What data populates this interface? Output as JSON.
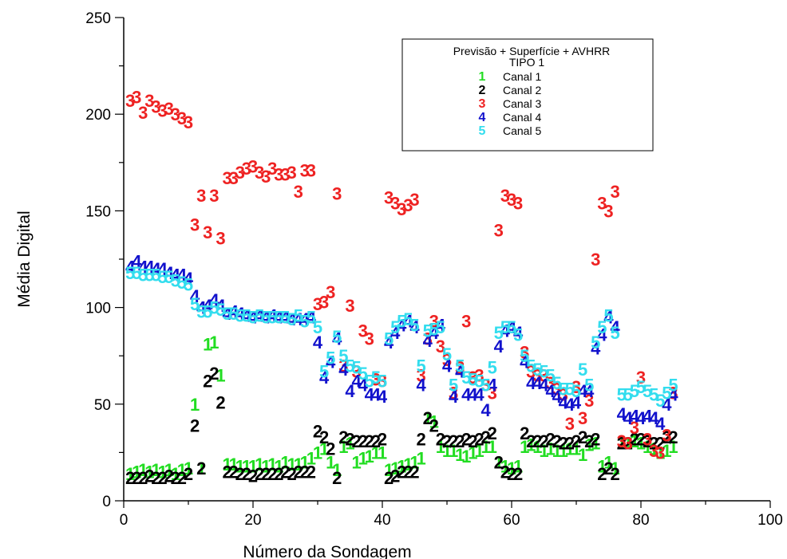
{
  "chart_data": {
    "type": "scatter",
    "xlabel": "Número da Sondagem",
    "ylabel": "Média Digital",
    "xlim": [
      0,
      100
    ],
    "ylim": [
      0,
      250
    ],
    "x_ticks": [
      "0",
      "20",
      "40",
      "60",
      "80",
      "100"
    ],
    "y_ticks": [
      "0",
      "50",
      "100",
      "150",
      "200",
      "250"
    ],
    "grid": false,
    "legend": {
      "placement": "top-right",
      "title": "Previsão + Superfície + AVHRR",
      "subtitle": "TIPO 1"
    },
    "series": [
      {
        "name": "Canal 1",
        "symbol": "1",
        "color": "#22dd22",
        "x": [
          1,
          2,
          3,
          4,
          5,
          6,
          7,
          8,
          9,
          10,
          11,
          12,
          13,
          14,
          15,
          16,
          17,
          18,
          19,
          20,
          21,
          22,
          23,
          24,
          25,
          26,
          27,
          28,
          29,
          30,
          31,
          32,
          33,
          34,
          35,
          36,
          37,
          38,
          39,
          40,
          41,
          42,
          43,
          44,
          45,
          46,
          47,
          48,
          49,
          50,
          51,
          52,
          53,
          54,
          55,
          56,
          57,
          58,
          59,
          60,
          61,
          62,
          63,
          64,
          65,
          66,
          67,
          68,
          69,
          70,
          71,
          72,
          73,
          74,
          75,
          76,
          77,
          78,
          79,
          80,
          81,
          82,
          83,
          84,
          85
        ],
        "y": [
          14,
          15,
          16,
          15,
          16,
          15,
          16,
          14,
          16,
          17,
          50,
          17,
          81,
          82,
          65,
          19,
          19,
          18,
          18,
          18,
          19,
          18,
          19,
          18,
          20,
          19,
          19,
          20,
          22,
          25,
          27,
          20,
          16,
          28,
          30,
          20,
          22,
          23,
          25,
          25,
          16,
          17,
          18,
          19,
          20,
          22,
          43,
          41,
          28,
          26,
          26,
          24,
          23,
          25,
          26,
          28,
          28,
          20,
          18,
          17,
          18,
          28,
          29,
          28,
          26,
          27,
          26,
          26,
          27,
          27,
          24,
          29,
          30,
          18,
          20,
          17,
          30,
          30,
          31,
          30,
          28,
          27,
          25,
          26,
          28
        ]
      },
      {
        "name": "Canal 2",
        "symbol": "2",
        "color": "#000000",
        "x": [
          1,
          2,
          3,
          4,
          5,
          6,
          7,
          8,
          9,
          10,
          11,
          12,
          13,
          14,
          15,
          16,
          17,
          18,
          19,
          20,
          21,
          22,
          23,
          24,
          25,
          26,
          27,
          28,
          29,
          30,
          31,
          32,
          33,
          34,
          35,
          36,
          37,
          38,
          39,
          40,
          41,
          42,
          43,
          44,
          45,
          46,
          47,
          48,
          49,
          50,
          51,
          52,
          53,
          54,
          55,
          56,
          57,
          58,
          59,
          60,
          61,
          62,
          63,
          64,
          65,
          66,
          67,
          68,
          69,
          70,
          71,
          72,
          73,
          74,
          75,
          76,
          77,
          78,
          79,
          80,
          81,
          82,
          83,
          84,
          85
        ],
        "y": [
          12,
          12,
          12,
          13,
          12,
          12,
          13,
          12,
          12,
          14,
          39,
          17,
          62,
          66,
          51,
          15,
          15,
          14,
          14,
          13,
          14,
          14,
          14,
          14,
          15,
          14,
          15,
          15,
          15,
          36,
          33,
          27,
          12,
          33,
          32,
          31,
          31,
          31,
          31,
          32,
          12,
          13,
          15,
          15,
          15,
          32,
          43,
          39,
          32,
          31,
          31,
          31,
          32,
          31,
          32,
          33,
          35,
          20,
          15,
          14,
          14,
          35,
          31,
          31,
          31,
          32,
          31,
          30,
          30,
          31,
          33,
          31,
          32,
          14,
          17,
          14,
          30,
          30,
          32,
          32,
          31,
          30,
          30,
          33,
          33
        ]
      },
      {
        "name": "Canal 3",
        "symbol": "3",
        "color": "#ee2222",
        "x": [
          1,
          2,
          3,
          4,
          5,
          6,
          7,
          8,
          9,
          10,
          11,
          12,
          13,
          14,
          15,
          16,
          17,
          18,
          19,
          20,
          21,
          22,
          23,
          24,
          25,
          26,
          27,
          28,
          29,
          30,
          31,
          32,
          33,
          34,
          35,
          36,
          37,
          38,
          39,
          40,
          41,
          42,
          43,
          44,
          45,
          46,
          47,
          48,
          49,
          50,
          51,
          52,
          53,
          54,
          55,
          56,
          57,
          58,
          59,
          60,
          61,
          62,
          63,
          64,
          65,
          66,
          67,
          68,
          69,
          70,
          71,
          72,
          73,
          74,
          75,
          76,
          77,
          78,
          79,
          80,
          81,
          82,
          83,
          84,
          85
        ],
        "y": [
          207,
          209,
          201,
          207,
          204,
          202,
          203,
          200,
          198,
          196,
          143,
          158,
          139,
          158,
          136,
          167,
          167,
          170,
          172,
          173,
          170,
          168,
          172,
          169,
          169,
          170,
          160,
          171,
          171,
          102,
          103,
          108,
          159,
          70,
          101,
          67,
          88,
          84,
          63,
          62,
          157,
          154,
          151,
          153,
          156,
          65,
          84,
          93,
          80,
          73,
          56,
          69,
          93,
          64,
          65,
          60,
          56,
          140,
          158,
          156,
          154,
          77,
          67,
          65,
          65,
          61,
          58,
          55,
          40,
          59,
          43,
          52,
          125,
          154,
          150,
          160,
          31,
          30,
          38,
          64,
          32,
          26,
          25,
          34,
          56
        ]
      },
      {
        "name": "Canal 4",
        "symbol": "4",
        "color": "#1111cc",
        "x": [
          1,
          2,
          3,
          4,
          5,
          6,
          7,
          8,
          9,
          10,
          11,
          12,
          13,
          14,
          15,
          16,
          17,
          18,
          19,
          20,
          21,
          22,
          23,
          24,
          25,
          26,
          27,
          28,
          29,
          30,
          31,
          32,
          33,
          34,
          35,
          36,
          37,
          38,
          39,
          40,
          41,
          42,
          43,
          44,
          45,
          46,
          47,
          48,
          49,
          50,
          51,
          52,
          53,
          54,
          55,
          56,
          57,
          58,
          59,
          60,
          61,
          62,
          63,
          64,
          65,
          66,
          67,
          68,
          69,
          70,
          71,
          72,
          73,
          74,
          75,
          76,
          77,
          78,
          79,
          80,
          81,
          82,
          83,
          84,
          85
        ],
        "y": [
          121,
          124,
          121,
          121,
          120,
          120,
          118,
          117,
          117,
          115,
          106,
          100,
          101,
          104,
          101,
          97,
          98,
          97,
          96,
          95,
          96,
          95,
          96,
          95,
          95,
          94,
          94,
          94,
          95,
          82,
          64,
          72,
          84,
          68,
          57,
          62,
          60,
          55,
          55,
          54,
          82,
          87,
          91,
          93,
          90,
          60,
          83,
          87,
          91,
          70,
          54,
          67,
          55,
          55,
          55,
          47,
          60,
          80,
          88,
          90,
          87,
          72,
          61,
          61,
          60,
          57,
          54,
          51,
          50,
          51,
          57,
          57,
          79,
          86,
          95,
          90,
          45,
          43,
          44,
          43,
          44,
          43,
          40,
          50,
          55
        ]
      },
      {
        "name": "Canal 5",
        "symbol": "5",
        "color": "#33ddee",
        "x": [
          1,
          2,
          3,
          4,
          5,
          6,
          7,
          8,
          9,
          10,
          11,
          12,
          13,
          14,
          15,
          16,
          17,
          18,
          19,
          20,
          21,
          22,
          23,
          24,
          25,
          26,
          27,
          28,
          29,
          30,
          31,
          32,
          33,
          34,
          35,
          36,
          37,
          38,
          39,
          40,
          41,
          42,
          43,
          44,
          45,
          46,
          47,
          48,
          49,
          50,
          51,
          52,
          53,
          54,
          55,
          56,
          57,
          58,
          59,
          60,
          61,
          62,
          63,
          64,
          65,
          66,
          67,
          68,
          69,
          70,
          71,
          72,
          73,
          74,
          75,
          76,
          77,
          78,
          79,
          80,
          81,
          82,
          83,
          84,
          85
        ],
        "y": [
          118,
          118,
          117,
          117,
          117,
          116,
          116,
          114,
          113,
          112,
          102,
          98,
          98,
          100,
          99,
          97,
          97,
          96,
          96,
          95,
          96,
          95,
          95,
          95,
          95,
          94,
          96,
          93,
          95,
          90,
          67,
          74,
          85,
          75,
          70,
          69,
          66,
          62,
          64,
          62,
          84,
          90,
          93,
          94,
          91,
          70,
          88,
          89,
          90,
          76,
          60,
          70,
          64,
          63,
          62,
          60,
          69,
          87,
          90,
          90,
          86,
          75,
          70,
          68,
          67,
          65,
          61,
          58,
          58,
          57,
          68,
          60,
          82,
          90,
          96,
          87,
          55,
          55,
          57,
          59,
          57,
          55,
          52,
          56,
          60
        ]
      }
    ]
  }
}
